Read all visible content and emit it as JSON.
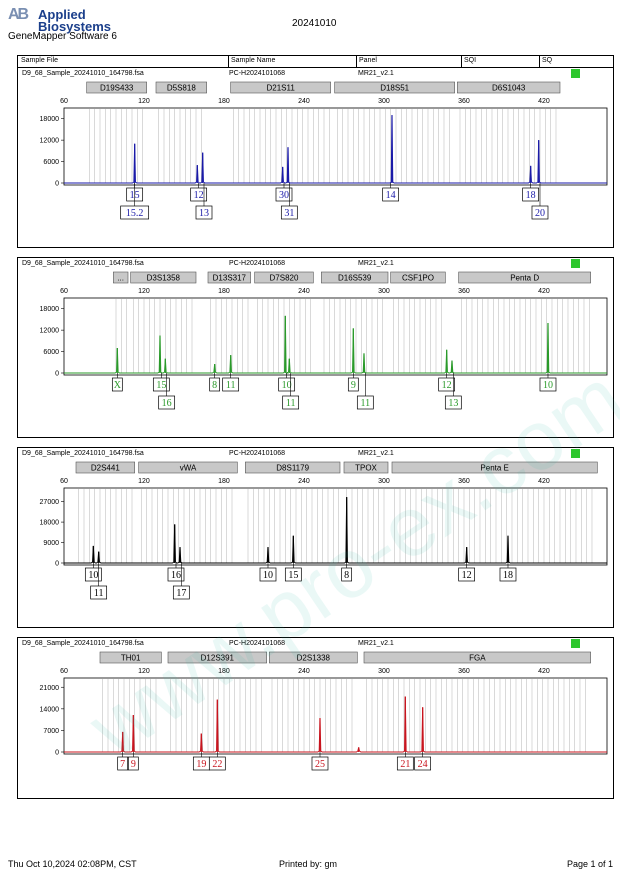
{
  "header": {
    "brand_line1": "Applied",
    "brand_line2": "Biosystems",
    "logo_mark": "AB",
    "software": "GeneMapper Software 6",
    "run_date": "20241010",
    "columns": [
      "Sample File",
      "Sample Name",
      "Panel",
      "SQI",
      "SQ"
    ]
  },
  "footer": {
    "timestamp": "Thu Oct 10,2024 02:08PM, CST",
    "printed_by": "Printed by: gm",
    "page": "Page 1 of 1"
  },
  "watermark": "www.pro-ex.com.cn",
  "colors": {
    "blue": "#1a1aa8",
    "green": "#2a9a2a",
    "black": "#000000",
    "red": "#c8141e",
    "sq_ok": "#2ec72e",
    "marker_fill": "#c8c8c8"
  },
  "chart_data": [
    {
      "type": "line",
      "dye": "blue",
      "sample_file": "D9_68_Sample_20241010_164798.fsa",
      "sample_name": "PC-H2024101068",
      "panel": "MR21_v2.1",
      "x_ticks": [
        60,
        120,
        180,
        240,
        300,
        360,
        420
      ],
      "y_ticks": [
        0,
        6000,
        12000,
        18000
      ],
      "ylim": [
        0,
        21000
      ],
      "markers": [
        {
          "name": "D19S433",
          "start": 77,
          "end": 122
        },
        {
          "name": "D5S818",
          "start": 129,
          "end": 167
        },
        {
          "name": "D21S11",
          "start": 185,
          "end": 260
        },
        {
          "name": "D18S51",
          "start": 263,
          "end": 353
        },
        {
          "name": "D6S1043",
          "start": 355,
          "end": 432
        }
      ],
      "peaks": [
        {
          "x": 113,
          "height": 11000,
          "labels": [
            "15",
            "15.2"
          ]
        },
        {
          "x": 160,
          "height": 5000,
          "labels": [
            "12"
          ]
        },
        {
          "x": 164,
          "height": 8500,
          "labels": [
            "13"
          ]
        },
        {
          "x": 224,
          "height": 4500,
          "labels": [
            "30"
          ]
        },
        {
          "x": 228,
          "height": 10000,
          "labels": [
            "31"
          ]
        },
        {
          "x": 306,
          "height": 19000,
          "labels": [
            "14"
          ]
        },
        {
          "x": 410,
          "height": 4800,
          "labels": [
            "18"
          ]
        },
        {
          "x": 416,
          "height": 12000,
          "labels": [
            "20"
          ]
        }
      ],
      "label_rows": [
        [
          {
            "x": 113,
            "text": "15"
          },
          {
            "x": 161,
            "text": "12"
          },
          {
            "x": 225,
            "text": "30"
          },
          {
            "x": 305,
            "text": "14"
          },
          {
            "x": 410,
            "text": "18"
          }
        ],
        [
          {
            "x": 113,
            "text": "15.2"
          },
          {
            "x": 165,
            "text": "13"
          },
          {
            "x": 229,
            "text": "31"
          },
          {
            "x": 417,
            "text": "20"
          }
        ]
      ]
    },
    {
      "type": "line",
      "dye": "green",
      "sample_file": "D9_68_Sample_20241010_164798.fsa",
      "sample_name": "PC-H2024101068",
      "panel": "MR21_v2.1",
      "x_ticks": [
        60,
        120,
        180,
        240,
        300,
        360,
        420
      ],
      "y_ticks": [
        0,
        6000,
        12000,
        18000
      ],
      "ylim": [
        0,
        21000
      ],
      "markers": [
        {
          "name": "...",
          "start": 97,
          "end": 108
        },
        {
          "name": "D3S1358",
          "start": 110,
          "end": 159
        },
        {
          "name": "D13S317",
          "start": 168,
          "end": 200
        },
        {
          "name": "D7S820",
          "start": 203,
          "end": 247
        },
        {
          "name": "D16S539",
          "start": 253,
          "end": 303
        },
        {
          "name": "CSF1PO",
          "start": 305,
          "end": 346
        },
        {
          "name": "Penta D",
          "start": 356,
          "end": 455
        }
      ],
      "peaks": [
        {
          "x": 100,
          "height": 7000,
          "labels": [
            "X"
          ]
        },
        {
          "x": 132,
          "height": 10500,
          "labels": [
            "15"
          ]
        },
        {
          "x": 136,
          "height": 4000,
          "labels": [
            "16"
          ]
        },
        {
          "x": 173,
          "height": 2500,
          "labels": [
            "8"
          ]
        },
        {
          "x": 185,
          "height": 5000,
          "labels": [
            "11"
          ]
        },
        {
          "x": 226,
          "height": 16000,
          "labels": [
            "10"
          ]
        },
        {
          "x": 229,
          "height": 4000,
          "labels": [
            "11"
          ]
        },
        {
          "x": 277,
          "height": 12500,
          "labels": [
            "9"
          ]
        },
        {
          "x": 285,
          "height": 5500,
          "labels": [
            "11"
          ]
        },
        {
          "x": 347,
          "height": 6500,
          "labels": [
            "12"
          ]
        },
        {
          "x": 351,
          "height": 3500,
          "labels": [
            "13"
          ]
        },
        {
          "x": 423,
          "height": 14000,
          "labels": [
            "10"
          ]
        }
      ],
      "label_rows": [
        [
          {
            "x": 100,
            "text": "X"
          },
          {
            "x": 133,
            "text": "15"
          },
          {
            "x": 173,
            "text": "8"
          },
          {
            "x": 185,
            "text": "11"
          },
          {
            "x": 227,
            "text": "10"
          },
          {
            "x": 277,
            "text": "9"
          },
          {
            "x": 347,
            "text": "12"
          },
          {
            "x": 423,
            "text": "10"
          }
        ],
        [
          {
            "x": 137,
            "text": "16"
          },
          {
            "x": 230,
            "text": "11"
          },
          {
            "x": 286,
            "text": "11"
          },
          {
            "x": 352,
            "text": "13"
          }
        ]
      ]
    },
    {
      "type": "line",
      "dye": "black",
      "sample_file": "D9_68_Sample_20241010_164798.fsa",
      "sample_name": "PC-H2024101068",
      "panel": "MR21_v2.1",
      "x_ticks": [
        60,
        120,
        180,
        240,
        300,
        360,
        420
      ],
      "y_ticks": [
        0,
        9000,
        18000,
        27000
      ],
      "ylim": [
        0,
        33000
      ],
      "markers": [
        {
          "name": "D2S441",
          "start": 69,
          "end": 113
        },
        {
          "name": "vWA",
          "start": 116,
          "end": 190
        },
        {
          "name": "D8S1179",
          "start": 196,
          "end": 267
        },
        {
          "name": "TPOX",
          "start": 270,
          "end": 303
        },
        {
          "name": "Penta E",
          "start": 306,
          "end": 460
        }
      ],
      "peaks": [
        {
          "x": 82,
          "height": 7500,
          "labels": [
            "10"
          ]
        },
        {
          "x": 86,
          "height": 5000,
          "labels": [
            "11"
          ]
        },
        {
          "x": 143,
          "height": 17000,
          "labels": [
            "16"
          ]
        },
        {
          "x": 147,
          "height": 7000,
          "labels": [
            "17"
          ]
        },
        {
          "x": 213,
          "height": 7000,
          "labels": [
            "10"
          ]
        },
        {
          "x": 232,
          "height": 12000,
          "labels": [
            "15"
          ]
        },
        {
          "x": 272,
          "height": 29000,
          "labels": [
            "8"
          ]
        },
        {
          "x": 362,
          "height": 7000,
          "labels": [
            "12"
          ]
        },
        {
          "x": 393,
          "height": 12000,
          "labels": [
            "18"
          ]
        }
      ],
      "label_rows": [
        [
          {
            "x": 82,
            "text": "10"
          },
          {
            "x": 144,
            "text": "16"
          },
          {
            "x": 213,
            "text": "10"
          },
          {
            "x": 232,
            "text": "15"
          },
          {
            "x": 272,
            "text": "8"
          },
          {
            "x": 362,
            "text": "12"
          },
          {
            "x": 393,
            "text": "18"
          }
        ],
        [
          {
            "x": 86,
            "text": "11"
          },
          {
            "x": 148,
            "text": "17"
          }
        ]
      ]
    },
    {
      "type": "line",
      "dye": "red",
      "sample_file": "D9_68_Sample_20241010_164798.fsa",
      "sample_name": "PC-H2024101068",
      "panel": "MR21_v2.1",
      "x_ticks": [
        60,
        120,
        180,
        240,
        300,
        360,
        420
      ],
      "y_ticks": [
        0,
        7000,
        14000,
        21000
      ],
      "ylim": [
        0,
        24000
      ],
      "markers": [
        {
          "name": "TH01",
          "start": 87,
          "end": 133
        },
        {
          "name": "D12S391",
          "start": 138,
          "end": 212
        },
        {
          "name": "D2S1338",
          "start": 214,
          "end": 280
        },
        {
          "name": "FGA",
          "start": 285,
          "end": 455
        }
      ],
      "peaks": [
        {
          "x": 104,
          "height": 6500,
          "labels": [
            "7"
          ]
        },
        {
          "x": 112,
          "height": 12000,
          "labels": [
            "9"
          ]
        },
        {
          "x": 163,
          "height": 6000,
          "labels": [
            "19"
          ]
        },
        {
          "x": 175,
          "height": 17000,
          "labels": [
            "22"
          ]
        },
        {
          "x": 252,
          "height": 11000,
          "labels": [
            "25"
          ]
        },
        {
          "x": 281,
          "height": 1500,
          "labels": []
        },
        {
          "x": 316,
          "height": 18000,
          "labels": [
            "21"
          ]
        },
        {
          "x": 329,
          "height": 14500,
          "labels": [
            "24"
          ]
        }
      ],
      "label_rows": [
        [
          {
            "x": 104,
            "text": "7"
          },
          {
            "x": 112,
            "text": "9"
          },
          {
            "x": 163,
            "text": "19"
          },
          {
            "x": 175,
            "text": "22"
          },
          {
            "x": 252,
            "text": "25"
          },
          {
            "x": 316,
            "text": "21"
          },
          {
            "x": 329,
            "text": "24"
          }
        ]
      ]
    }
  ]
}
